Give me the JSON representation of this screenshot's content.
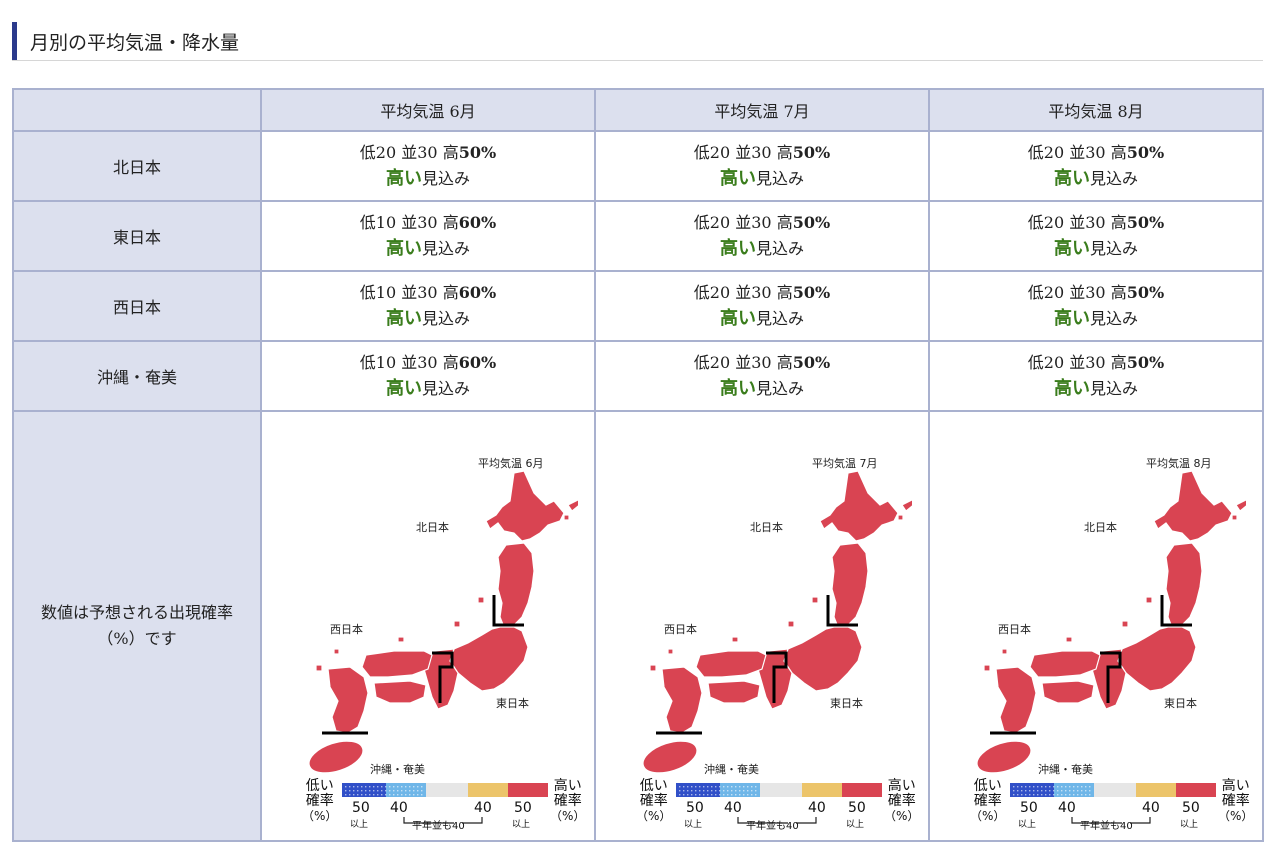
{
  "section": {
    "title": "月別の平均気温・降水量"
  },
  "table": {
    "columns": [
      "平均気温 6月",
      "平均気温 7月",
      "平均気温 8月"
    ],
    "rows": [
      {
        "region": "北日本",
        "cells": [
          {
            "low": "低20",
            "normal": "並30",
            "high_prefix": "高",
            "high_value": "50%",
            "outlook_strong": "高い",
            "outlook_rest": "見込み"
          },
          {
            "low": "低20",
            "normal": "並30",
            "high_prefix": "高",
            "high_value": "50%",
            "outlook_strong": "高い",
            "outlook_rest": "見込み"
          },
          {
            "low": "低20",
            "normal": "並30",
            "high_prefix": "高",
            "high_value": "50%",
            "outlook_strong": "高い",
            "outlook_rest": "見込み"
          }
        ]
      },
      {
        "region": "東日本",
        "cells": [
          {
            "low": "低10",
            "normal": "並30",
            "high_prefix": "高",
            "high_value": "60%",
            "outlook_strong": "高い",
            "outlook_rest": "見込み"
          },
          {
            "low": "低20",
            "normal": "並30",
            "high_prefix": "高",
            "high_value": "50%",
            "outlook_strong": "高い",
            "outlook_rest": "見込み"
          },
          {
            "low": "低20",
            "normal": "並30",
            "high_prefix": "高",
            "high_value": "50%",
            "outlook_strong": "高い",
            "outlook_rest": "見込み"
          }
        ]
      },
      {
        "region": "西日本",
        "cells": [
          {
            "low": "低10",
            "normal": "並30",
            "high_prefix": "高",
            "high_value": "60%",
            "outlook_strong": "高い",
            "outlook_rest": "見込み"
          },
          {
            "low": "低20",
            "normal": "並30",
            "high_prefix": "高",
            "high_value": "50%",
            "outlook_strong": "高い",
            "outlook_rest": "見込み"
          },
          {
            "low": "低20",
            "normal": "並30",
            "high_prefix": "高",
            "high_value": "50%",
            "outlook_strong": "高い",
            "outlook_rest": "見込み"
          }
        ]
      },
      {
        "region": "沖縄・奄美",
        "cells": [
          {
            "low": "低10",
            "normal": "並30",
            "high_prefix": "高",
            "high_value": "60%",
            "outlook_strong": "高い",
            "outlook_rest": "見込み"
          },
          {
            "low": "低20",
            "normal": "並30",
            "high_prefix": "高",
            "high_value": "50%",
            "outlook_strong": "高い",
            "outlook_rest": "見込み"
          },
          {
            "low": "低20",
            "normal": "並30",
            "high_prefix": "高",
            "high_value": "50%",
            "outlook_strong": "高い",
            "outlook_rest": "見込み"
          }
        ]
      }
    ],
    "map_row_note": [
      "数値は予想される出現確率",
      "（%）です"
    ]
  },
  "maps": [
    {
      "title": "平均気温 6月"
    },
    {
      "title": "平均気温 7月"
    },
    {
      "title": "平均気温 8月"
    }
  ],
  "map_labels": {
    "north": "北日本",
    "east": "東日本",
    "west": "西日本",
    "okinawa": "沖縄・奄美"
  },
  "legend": {
    "low_line1": "低い",
    "low_line2": "確率",
    "low_line3": "（%）",
    "high_line1": "高い",
    "high_line2": "確率",
    "high_line3": "（%）",
    "tick_50_left": "50",
    "tick_40_left": "40",
    "tick_40_right": "40",
    "tick_50_right": "50",
    "ijou": "以上",
    "normal_note": "平年並も40"
  },
  "colors": {
    "map_fill": "#d94452",
    "map_stroke": "#ffffff",
    "boundary": "#000000",
    "legend_blue_dark": "#3150c8",
    "legend_blue_light": "#6fb6e8",
    "legend_gray": "#e6e6e6",
    "legend_yellow": "#ecc46a",
    "legend_red": "#d94452",
    "outlook_green": "#3a7d1c",
    "header_bg": "#dce0ee",
    "border": "#a9b1cf",
    "title_bar": "#2b3a8c"
  }
}
